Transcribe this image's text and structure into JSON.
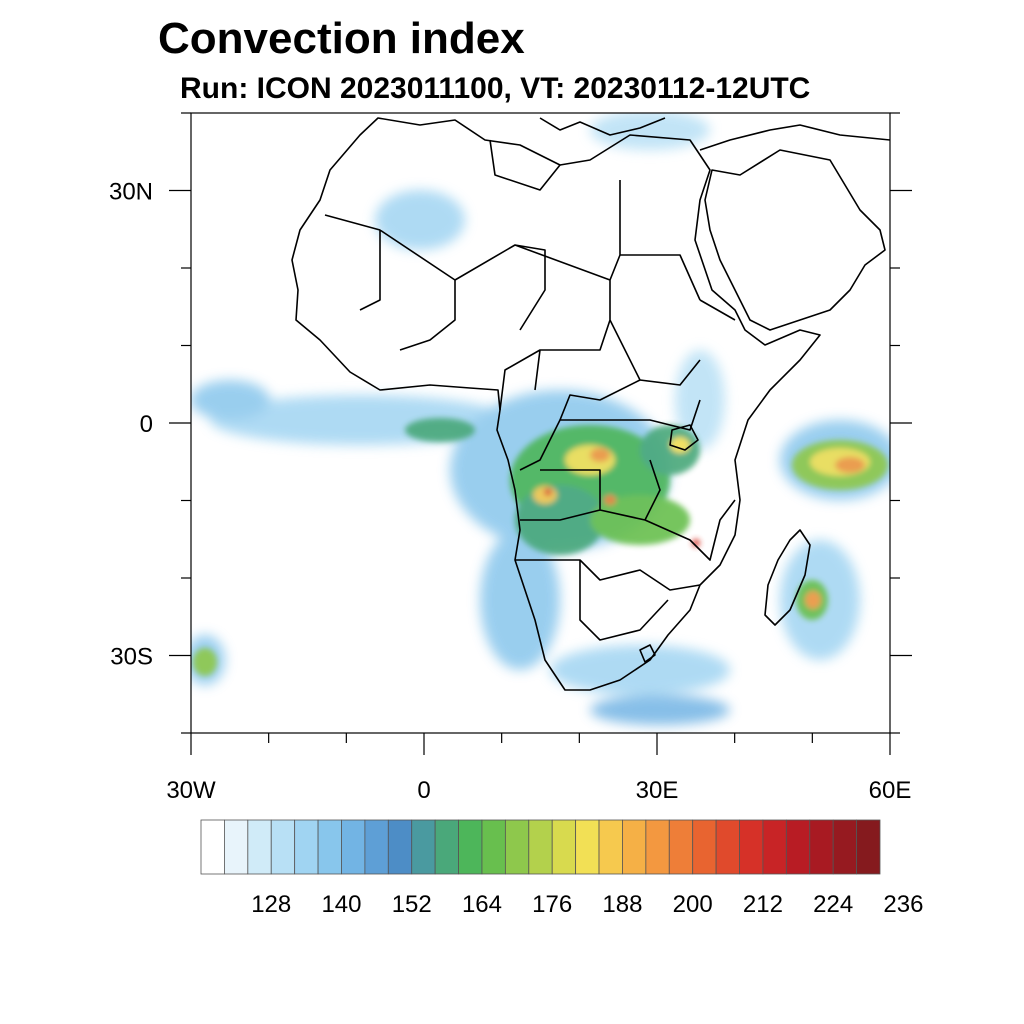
{
  "title": "Convection index",
  "subtitle": "Run: ICON 2023011100,  VT: 20230112-12UTC",
  "map": {
    "lon_range": [
      -30,
      60
    ],
    "lat_range": [
      -40,
      40
    ],
    "lon_labels": [
      "30W",
      "0",
      "30E",
      "60E"
    ],
    "lat_labels": [
      "30N",
      "0",
      "30S"
    ],
    "lon_label_values": [
      -30,
      0,
      30,
      60
    ],
    "lat_label_values": [
      30,
      0,
      -30
    ]
  },
  "colorbar": {
    "labels": [
      "128",
      "140",
      "152",
      "164",
      "176",
      "188",
      "200",
      "212",
      "224",
      "236"
    ],
    "colors": [
      "#ffffff",
      "#e8f4fb",
      "#d0ebf8",
      "#b8e0f5",
      "#a0d4f2",
      "#88c6ec",
      "#72b4e4",
      "#5e9fd6",
      "#4d8dc6",
      "#4a9aa0",
      "#4aa87a",
      "#4db65a",
      "#68bf4e",
      "#8ec84c",
      "#b3d14c",
      "#d8da4e",
      "#f2e055",
      "#f6c94e",
      "#f5b046",
      "#f39840",
      "#ee7e38",
      "#e86430",
      "#e04a2c",
      "#d63128",
      "#c82426",
      "#b81c24",
      "#a81a22",
      "#961a20",
      "#851a1e"
    ]
  }
}
